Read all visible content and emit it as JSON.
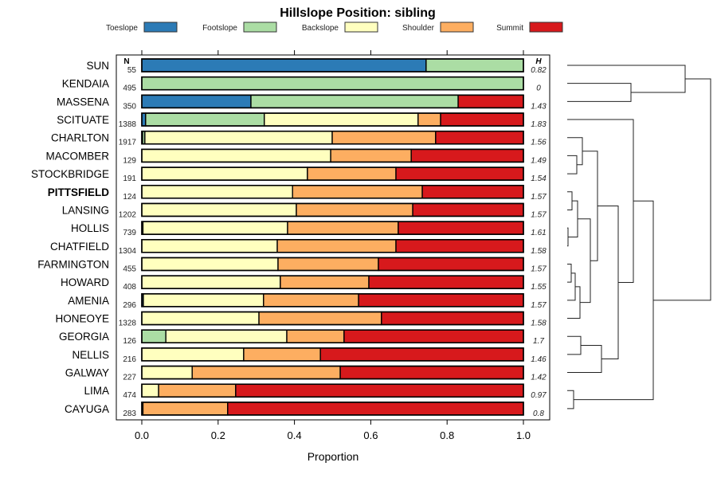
{
  "chart_data": {
    "type": "bar",
    "orientation": "horizontal-stacked",
    "title": "Hillslope Position: sibling",
    "xlabel": "Proportion",
    "xlim": [
      0,
      1
    ],
    "xticks": [
      "0.0",
      "0.2",
      "0.4",
      "0.6",
      "0.8",
      "1.0"
    ],
    "n_header": "N",
    "h_header": "H",
    "highlight": "PITTSFIELD",
    "legend_placement": "top",
    "series": [
      {
        "name": "Toeslope",
        "color": "#2C7BB6"
      },
      {
        "name": "Footslope",
        "color": "#ABDDA4"
      },
      {
        "name": "Backslope",
        "color": "#FFFFBF"
      },
      {
        "name": "Shoulder",
        "color": "#FDAE61"
      },
      {
        "name": "Summit",
        "color": "#D7191C"
      }
    ],
    "rows": [
      {
        "name": "SUN",
        "n": "55",
        "h": "0.82",
        "values": [
          0.745,
          0.255,
          0,
          0,
          0
        ]
      },
      {
        "name": "KENDAIA",
        "n": "495",
        "h": "0",
        "values": [
          0,
          1,
          0,
          0,
          0
        ]
      },
      {
        "name": "MASSENA",
        "n": "350",
        "h": "1.43",
        "values": [
          0.286,
          0.543,
          0,
          0,
          0.171
        ]
      },
      {
        "name": "SCITUATE",
        "n": "1388",
        "h": "1.83",
        "values": [
          0.01,
          0.311,
          0.403,
          0.059,
          0.217
        ]
      },
      {
        "name": "CHARLTON",
        "n": "1917",
        "h": "1.56",
        "values": [
          0.002,
          0.006,
          0.491,
          0.271,
          0.23
        ]
      },
      {
        "name": "MACOMBER",
        "n": "129",
        "h": "1.49",
        "values": [
          0,
          0,
          0.495,
          0.211,
          0.294
        ]
      },
      {
        "name": "STOCKBRIDGE",
        "n": "191",
        "h": "1.54",
        "values": [
          0,
          0,
          0.434,
          0.232,
          0.334
        ]
      },
      {
        "name": "PITTSFIELD",
        "n": "124",
        "h": "1.57",
        "values": [
          0,
          0,
          0.395,
          0.34,
          0.265
        ]
      },
      {
        "name": "LANSING",
        "n": "1202",
        "h": "1.57",
        "values": [
          0,
          0,
          0.405,
          0.305,
          0.29
        ]
      },
      {
        "name": "HOLLIS",
        "n": "739",
        "h": "1.61",
        "values": [
          0.003,
          0,
          0.379,
          0.29,
          0.328
        ]
      },
      {
        "name": "CHATFIELD",
        "n": "1304",
        "h": "1.58",
        "values": [
          0,
          0,
          0.355,
          0.311,
          0.334
        ]
      },
      {
        "name": "FARMINGTON",
        "n": "455",
        "h": "1.57",
        "values": [
          0,
          0,
          0.357,
          0.263,
          0.38
        ]
      },
      {
        "name": "HOWARD",
        "n": "408",
        "h": "1.55",
        "values": [
          0,
          0,
          0.363,
          0.232,
          0.405
        ]
      },
      {
        "name": "AMENIA",
        "n": "296",
        "h": "1.57",
        "values": [
          0.004,
          0,
          0.315,
          0.249,
          0.432
        ]
      },
      {
        "name": "HONEOYE",
        "n": "1328",
        "h": "1.58",
        "values": [
          0,
          0,
          0.307,
          0.321,
          0.372
        ]
      },
      {
        "name": "GEORGIA",
        "n": "126",
        "h": "1.7",
        "values": [
          0,
          0.063,
          0.317,
          0.15,
          0.47
        ]
      },
      {
        "name": "NELLIS",
        "n": "216",
        "h": "1.46",
        "values": [
          0,
          0,
          0.267,
          0.201,
          0.532
        ]
      },
      {
        "name": "GALWAY",
        "n": "227",
        "h": "1.42",
        "values": [
          0,
          0,
          0.132,
          0.388,
          0.48
        ]
      },
      {
        "name": "LIMA",
        "n": "474",
        "h": "0.97",
        "values": [
          0,
          0,
          0.044,
          0.202,
          0.754
        ]
      },
      {
        "name": "CAYUGA",
        "n": "283",
        "h": "0.8",
        "values": [
          0.003,
          0,
          0,
          0.222,
          0.775
        ]
      }
    ]
  }
}
